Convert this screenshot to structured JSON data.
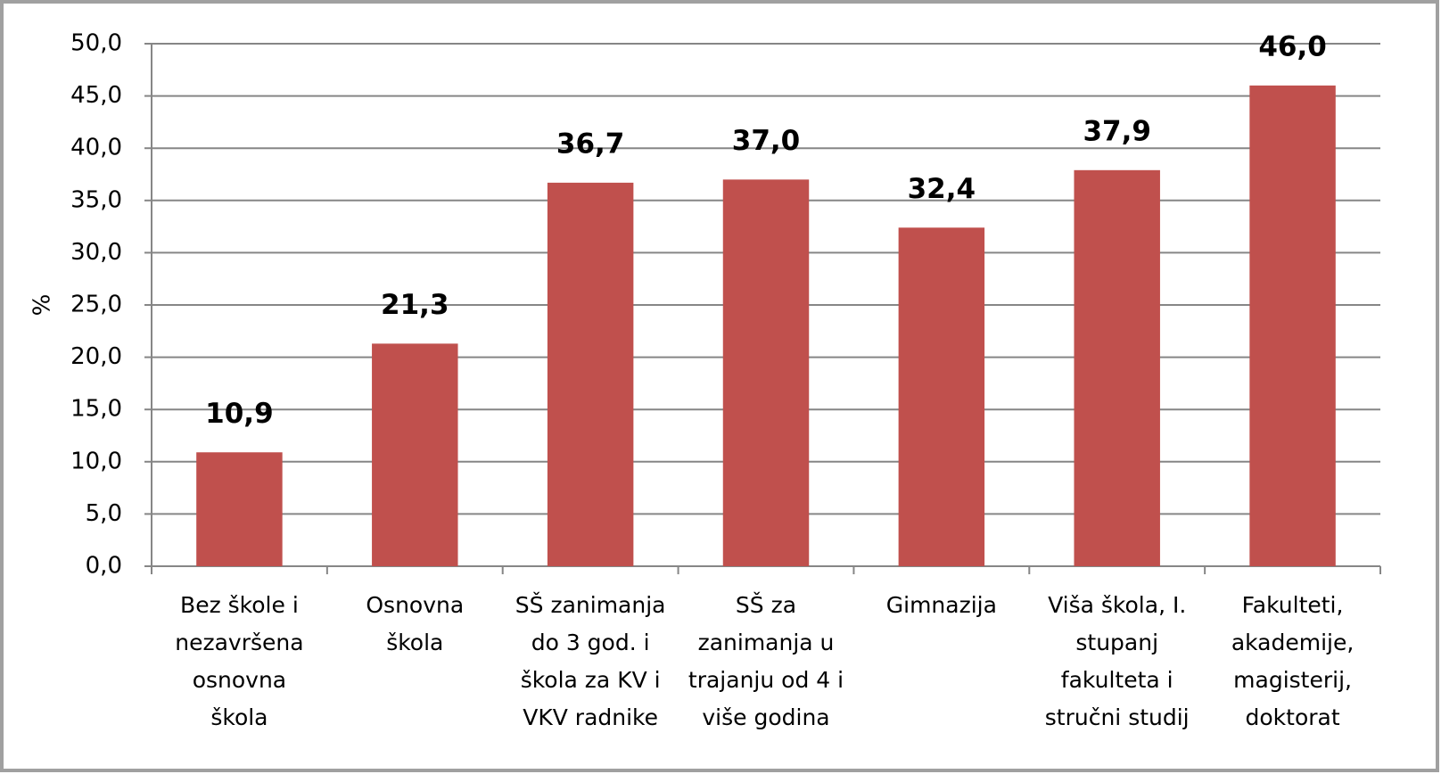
{
  "chart_data": {
    "type": "bar",
    "y_label": "%",
    "categories": [
      [
        "Bez škole i",
        "nezavršena",
        "osnovna",
        "škola"
      ],
      [
        "Osnovna",
        "škola"
      ],
      [
        "SŠ zanimanja",
        "do 3 god. i",
        "škola za KV i",
        "VKV radnike"
      ],
      [
        "SŠ za",
        "zanimanja u",
        "trajanju od 4 i",
        "više godina"
      ],
      [
        "Gimnazija"
      ],
      [
        "Viša škola, I.",
        "stupanj",
        "fakulteta i",
        "stručni studij"
      ],
      [
        "Fakulteti,",
        "akademije,",
        "magisterij,",
        "doktorat"
      ]
    ],
    "values": [
      10.9,
      21.3,
      36.7,
      37.0,
      32.4,
      37.9,
      46.0
    ],
    "value_labels": [
      "10,9",
      "21,3",
      "36,7",
      "37,0",
      "32,4",
      "37,9",
      "46,0"
    ],
    "color": "#c0504d",
    "ylim": [
      0,
      50
    ],
    "yticks": [
      {
        "value": 0,
        "label": "0,0"
      },
      {
        "value": 5,
        "label": "5,0"
      },
      {
        "value": 10,
        "label": "10,0"
      },
      {
        "value": 15,
        "label": "15,0"
      },
      {
        "value": 20,
        "label": "20,0"
      },
      {
        "value": 25,
        "label": "25,0"
      },
      {
        "value": 30,
        "label": "30,0"
      },
      {
        "value": 35,
        "label": "35,0"
      },
      {
        "value": 40,
        "label": "40,0"
      },
      {
        "value": 45,
        "label": "45,0"
      },
      {
        "value": 50,
        "label": "50,0"
      }
    ],
    "grid": true
  }
}
